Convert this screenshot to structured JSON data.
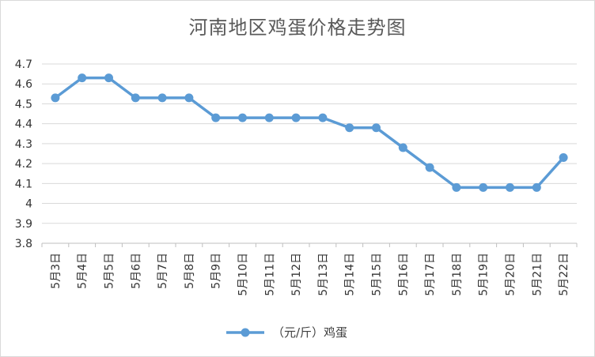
{
  "chart_data": {
    "type": "line",
    "title": "河南地区鸡蛋价格走势图",
    "categories": [
      "5月3日",
      "5月4日",
      "5月5日",
      "5月6日",
      "5月7日",
      "5月8日",
      "5月9日",
      "5月10日",
      "5月11日",
      "5月12日",
      "5月13日",
      "5月14日",
      "5月15日",
      "5月16日",
      "5月17日",
      "5月18日",
      "5月19日",
      "5月20日",
      "5月21日",
      "5月22日"
    ],
    "series": [
      {
        "name": "（元/斤）鸡蛋",
        "color": "#5b9bd5",
        "values": [
          4.53,
          4.63,
          4.63,
          4.53,
          4.53,
          4.53,
          4.43,
          4.43,
          4.43,
          4.43,
          4.43,
          4.38,
          4.38,
          4.28,
          4.18,
          4.08,
          4.08,
          4.08,
          4.08,
          4.23
        ]
      }
    ],
    "yticks": [
      "3.8",
      "3.9",
      "4",
      "4.1",
      "4.2",
      "4.3",
      "4.4",
      "4.5",
      "4.6",
      "4.7"
    ],
    "ylim": [
      3.8,
      4.7
    ],
    "grid": true,
    "legend": "bottom"
  }
}
